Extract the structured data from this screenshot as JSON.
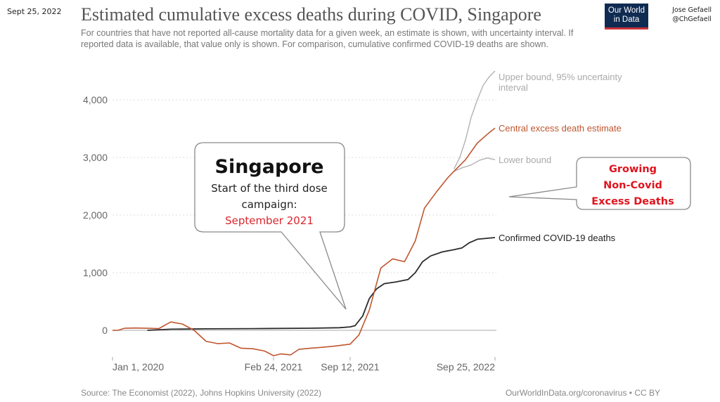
{
  "header": {
    "date_stamp": "Sept 25, 2022",
    "title": "Estimated cumulative excess deaths during COVID, Singapore",
    "subtitle": "For countries that have not reported all-cause mortality data for a given week, an estimate is shown, with uncertainty interval. If reported data is available, that value only is shown. For comparison, cumulative confirmed COVID-19 deaths are shown.",
    "logo_line1": "Our World",
    "logo_line2": "in Data",
    "author_name": "Jose Gefaell",
    "author_handle": "@ChGefaell"
  },
  "footer": {
    "source": "Source: The Economist (2022), Johns Hopkins University (2022)",
    "license": "OurWorldInData.org/coronavirus • CC BY"
  },
  "callouts": {
    "singapore": {
      "title": "Singapore",
      "line1": "Start of the third dose",
      "line2": "campaign:",
      "highlight": "September 2021",
      "highlight_color": "#d9262e"
    },
    "growing": {
      "line1": "Growing",
      "line2": "Non-Covid",
      "line3": "Excess Deaths",
      "color": "#e0141e"
    }
  },
  "colors": {
    "central": "#c0562f",
    "bounds": "#b3b3b3",
    "confirmed": "#2b2b2b",
    "grid": "#dddddd",
    "zero_line": "#bbbbbb"
  },
  "chart_data": {
    "type": "line",
    "title": "Estimated cumulative excess deaths during COVID, Singapore",
    "xlabel": "",
    "ylabel": "",
    "ylim": [
      -500,
      4500
    ],
    "xlim": [
      "2020-01-01",
      "2022-09-25"
    ],
    "yticks": [
      0,
      1000,
      2000,
      3000,
      4000
    ],
    "ytick_labels": [
      "0",
      "1,000",
      "2,000",
      "3,000",
      "4,000"
    ],
    "xticks": [
      "2020-01-01",
      "2021-02-24",
      "2021-09-12",
      "2022-09-25"
    ],
    "xtick_labels": [
      "Jan 1, 2020",
      "Feb 24, 2021",
      "Sep 12, 2021",
      "Sep 25, 2022"
    ],
    "grid": true,
    "legend": "inline-right",
    "series": [
      {
        "name": "Upper bound, 95% uncertainty interval",
        "key": "upper",
        "points": [
          [
            "2022-06-10",
            2800
          ],
          [
            "2022-06-25",
            3000
          ],
          [
            "2022-07-10",
            3300
          ],
          [
            "2022-07-25",
            3700
          ],
          [
            "2022-08-10",
            4000
          ],
          [
            "2022-08-25",
            4250
          ],
          [
            "2022-09-10",
            4400
          ],
          [
            "2022-09-25",
            4500
          ]
        ]
      },
      {
        "name": "Central excess death estimate",
        "key": "central",
        "points": [
          [
            "2020-01-01",
            0
          ],
          [
            "2020-01-15",
            0
          ],
          [
            "2020-02-01",
            35
          ],
          [
            "2020-03-01",
            40
          ],
          [
            "2020-04-01",
            35
          ],
          [
            "2020-05-01",
            30
          ],
          [
            "2020-06-01",
            145
          ],
          [
            "2020-07-01",
            110
          ],
          [
            "2020-08-01",
            0
          ],
          [
            "2020-09-01",
            -190
          ],
          [
            "2020-10-01",
            -230
          ],
          [
            "2020-11-01",
            -220
          ],
          [
            "2020-12-01",
            -310
          ],
          [
            "2021-01-01",
            -320
          ],
          [
            "2021-02-01",
            -360
          ],
          [
            "2021-02-24",
            -440
          ],
          [
            "2021-03-15",
            -410
          ],
          [
            "2021-04-10",
            -425
          ],
          [
            "2021-05-01",
            -330
          ],
          [
            "2021-06-01",
            -310
          ],
          [
            "2021-07-01",
            -295
          ],
          [
            "2021-08-01",
            -275
          ],
          [
            "2021-09-12",
            -240
          ],
          [
            "2021-10-05",
            -80
          ],
          [
            "2021-11-01",
            350
          ],
          [
            "2021-12-01",
            1080
          ],
          [
            "2022-01-01",
            1240
          ],
          [
            "2022-02-01",
            1190
          ],
          [
            "2022-03-01",
            1550
          ],
          [
            "2022-03-25",
            2120
          ],
          [
            "2022-04-25",
            2400
          ],
          [
            "2022-05-25",
            2650
          ],
          [
            "2022-06-10",
            2760
          ],
          [
            "2022-07-10",
            2960
          ],
          [
            "2022-08-10",
            3250
          ],
          [
            "2022-09-10",
            3430
          ],
          [
            "2022-09-25",
            3510
          ]
        ]
      },
      {
        "name": "Lower bound",
        "key": "lower",
        "points": [
          [
            "2022-06-10",
            2760
          ],
          [
            "2022-07-01",
            2820
          ],
          [
            "2022-07-25",
            2870
          ],
          [
            "2022-08-15",
            2950
          ],
          [
            "2022-09-05",
            2990
          ],
          [
            "2022-09-25",
            2960
          ]
        ]
      },
      {
        "name": "Confirmed COVID-19 deaths",
        "key": "confirmed",
        "points": [
          [
            "2020-04-01",
            0
          ],
          [
            "2020-06-01",
            20
          ],
          [
            "2020-09-01",
            25
          ],
          [
            "2021-01-01",
            29
          ],
          [
            "2021-06-01",
            36
          ],
          [
            "2021-08-15",
            45
          ],
          [
            "2021-09-12",
            60
          ],
          [
            "2021-09-25",
            80
          ],
          [
            "2021-10-15",
            250
          ],
          [
            "2021-11-01",
            550
          ],
          [
            "2021-11-20",
            720
          ],
          [
            "2021-12-10",
            810
          ],
          [
            "2022-01-10",
            840
          ],
          [
            "2022-02-10",
            880
          ],
          [
            "2022-03-01",
            1000
          ],
          [
            "2022-03-20",
            1190
          ],
          [
            "2022-04-10",
            1290
          ],
          [
            "2022-05-10",
            1360
          ],
          [
            "2022-06-10",
            1400
          ],
          [
            "2022-07-01",
            1430
          ],
          [
            "2022-07-20",
            1520
          ],
          [
            "2022-08-10",
            1580
          ],
          [
            "2022-09-25",
            1610
          ]
        ]
      }
    ]
  }
}
